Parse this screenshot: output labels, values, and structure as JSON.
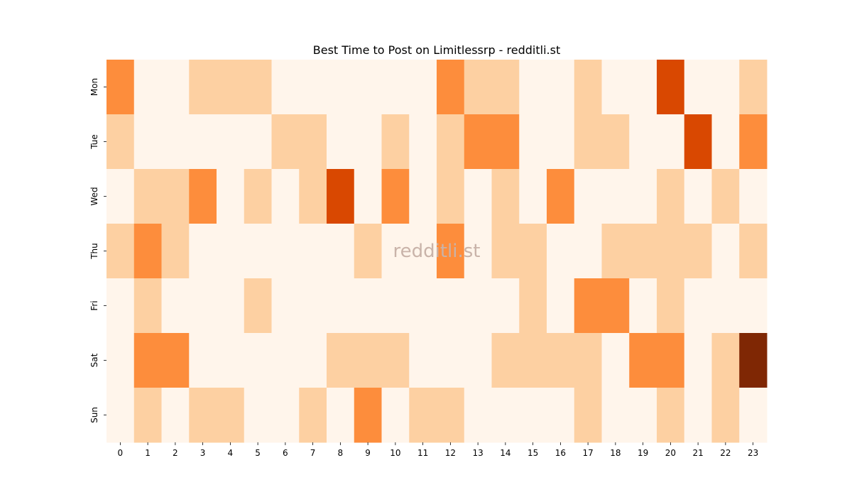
{
  "chart_data": {
    "type": "heatmap",
    "title": "Best Time to Post on Limitlessrp - redditli.st",
    "watermark": "redditli.st",
    "x_categories": [
      "0",
      "1",
      "2",
      "3",
      "4",
      "5",
      "6",
      "7",
      "8",
      "9",
      "10",
      "11",
      "12",
      "13",
      "14",
      "15",
      "16",
      "17",
      "18",
      "19",
      "20",
      "21",
      "22",
      "23"
    ],
    "y_categories": [
      "Mon",
      "Tue",
      "Wed",
      "Thu",
      "Fri",
      "Sat",
      "Sun"
    ],
    "values": [
      [
        2,
        0,
        0,
        1,
        1,
        1,
        0,
        0,
        0,
        0,
        0,
        0,
        2,
        1,
        1,
        0,
        0,
        1,
        0,
        0,
        3,
        0,
        0,
        1
      ],
      [
        1,
        0,
        0,
        0,
        0,
        0,
        1,
        1,
        0,
        0,
        1,
        0,
        1,
        2,
        2,
        0,
        0,
        1,
        1,
        0,
        0,
        3,
        0,
        2
      ],
      [
        0,
        1,
        1,
        2,
        0,
        1,
        0,
        1,
        3,
        0,
        2,
        0,
        1,
        0,
        1,
        0,
        2,
        0,
        0,
        0,
        1,
        0,
        1,
        0
      ],
      [
        1,
        2,
        1,
        0,
        0,
        0,
        0,
        0,
        0,
        1,
        0,
        0,
        2,
        0,
        1,
        1,
        0,
        0,
        1,
        1,
        1,
        1,
        0,
        1
      ],
      [
        0,
        1,
        0,
        0,
        0,
        1,
        0,
        0,
        0,
        0,
        0,
        0,
        0,
        0,
        0,
        1,
        0,
        2,
        2,
        0,
        1,
        0,
        0,
        0
      ],
      [
        0,
        2,
        2,
        0,
        0,
        0,
        0,
        0,
        1,
        1,
        1,
        0,
        0,
        0,
        1,
        1,
        1,
        1,
        0,
        2,
        2,
        0,
        1,
        4
      ],
      [
        0,
        1,
        0,
        1,
        1,
        0,
        0,
        1,
        0,
        2,
        0,
        1,
        1,
        0,
        0,
        0,
        0,
        1,
        0,
        0,
        1,
        0,
        1,
        0
      ]
    ],
    "colorscale": [
      "#fff5eb",
      "#fdd0a2",
      "#fd8d3c",
      "#d94801",
      "#7f2704"
    ],
    "colorbar": false,
    "grid": false
  }
}
